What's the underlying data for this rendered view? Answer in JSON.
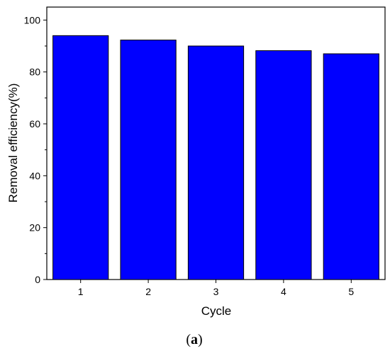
{
  "chart_data": {
    "type": "bar",
    "categories": [
      "1",
      "2",
      "3",
      "4",
      "5"
    ],
    "values": [
      94,
      92.3,
      90,
      88.2,
      87
    ],
    "xlabel": "Cycle",
    "ylabel": "Removal efficiency(%)",
    "ylim": [
      0,
      105
    ],
    "yticks": [
      "0",
      "20",
      "40",
      "60",
      "80",
      "100"
    ],
    "grid": false,
    "bar_color": "#0000ff",
    "bar_edge_color": "#000000"
  },
  "caption": {
    "open": "(",
    "letter": "a",
    "close": ")"
  }
}
